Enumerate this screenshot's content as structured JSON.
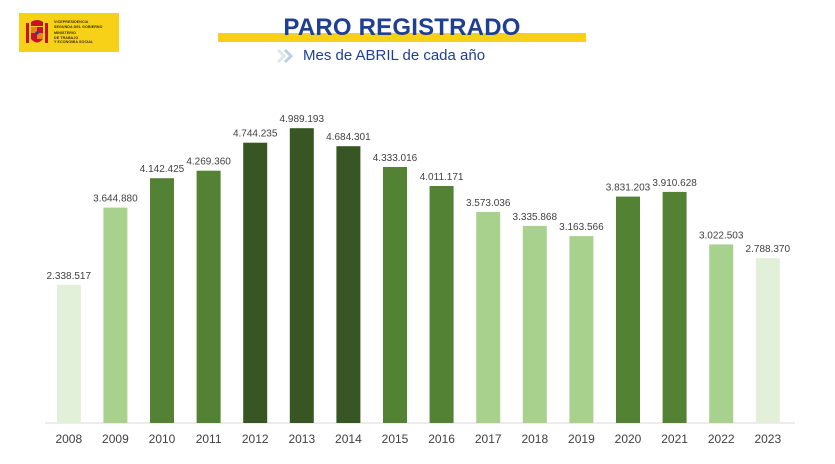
{
  "logo": {
    "lines": [
      "VICEPRESIDENCIA",
      "SEGUNDA DEL GOBIERNO",
      "MINISTERIO",
      "DE TRABAJO",
      "Y ECONOMÍA SOCIAL"
    ],
    "colors": {
      "background": "#f7d117",
      "emblem": "#c8102e"
    }
  },
  "header": {
    "title": "PARO REGISTRADO",
    "subtitle": "Mes de ABRIL de cada año"
  },
  "chart_data": {
    "type": "bar",
    "title": "PARO REGISTRADO",
    "subtitle": "Mes de ABRIL de cada año",
    "xlabel": "",
    "ylabel": "",
    "grid": false,
    "legend": "none",
    "ylim": [
      0,
      5500000
    ],
    "categories": [
      "2008",
      "2009",
      "2010",
      "2011",
      "2012",
      "2013",
      "2014",
      "2015",
      "2016",
      "2017",
      "2018",
      "2019",
      "2020",
      "2021",
      "2022",
      "2023"
    ],
    "values": [
      2338517,
      3644880,
      4142425,
      4269360,
      4744235,
      4989193,
      4684301,
      4333016,
      4011171,
      3573036,
      3335868,
      3163566,
      3831203,
      3910628,
      3022503,
      2788370
    ],
    "value_labels": [
      "2.338.517",
      "3.644.880",
      "4.142.425",
      "4.269.360",
      "4.744.235",
      "4.989.193",
      "4.684.301",
      "4.333.016",
      "4.011.171",
      "3.573.036",
      "3.335.868",
      "3.163.566",
      "3.831.203",
      "3.910.628",
      "3.022.503",
      "2.788.370"
    ],
    "bar_colors": [
      "#e2efd9",
      "#a9d18e",
      "#548235",
      "#548235",
      "#375623",
      "#375623",
      "#375623",
      "#548235",
      "#548235",
      "#a9d18e",
      "#a9d18e",
      "#a9d18e",
      "#548235",
      "#548235",
      "#a9d18e",
      "#e2efd9"
    ],
    "colors": {
      "value_label": "#404040",
      "tick_label": "#404040",
      "axis": "#d9d9d9"
    }
  }
}
